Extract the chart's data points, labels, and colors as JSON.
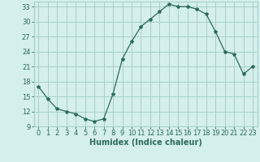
{
  "x": [
    0,
    1,
    2,
    3,
    4,
    5,
    6,
    7,
    8,
    9,
    10,
    11,
    12,
    13,
    14,
    15,
    16,
    17,
    18,
    19,
    20,
    21,
    22,
    23
  ],
  "y": [
    17,
    14.5,
    12.5,
    12,
    11.5,
    10.5,
    10,
    10.5,
    15.5,
    22.5,
    26,
    29,
    30.5,
    32,
    33.5,
    33,
    33,
    32.5,
    31.5,
    28,
    24,
    23.5,
    19.5,
    21
  ],
  "xlabel": "Humidex (Indice chaleur)",
  "ylim": [
    9,
    34
  ],
  "xlim": [
    -0.5,
    23.5
  ],
  "yticks": [
    9,
    12,
    15,
    18,
    21,
    24,
    27,
    30,
    33
  ],
  "xticks": [
    0,
    1,
    2,
    3,
    4,
    5,
    6,
    7,
    8,
    9,
    10,
    11,
    12,
    13,
    14,
    15,
    16,
    17,
    18,
    19,
    20,
    21,
    22,
    23
  ],
  "line_color": "#2d6b5e",
  "marker": "*",
  "bg_color": "#d5eeee",
  "grid_color": "#a8d0cc",
  "font_color": "#2d6b5e",
  "tick_fontsize": 6.0,
  "xlabel_fontsize": 7.0
}
